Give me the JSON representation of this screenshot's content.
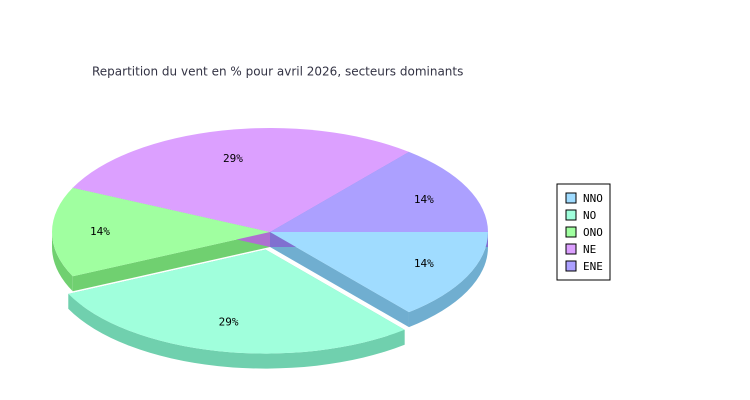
{
  "chart_data": {
    "type": "pie3d",
    "title": "Repartition du vent en % pour avril 2026, secteurs dominants",
    "categories": [
      "NNO",
      "NO",
      "ONO",
      "NE",
      "ENE"
    ],
    "values": [
      14,
      29,
      14,
      29,
      14
    ],
    "value_labels": [
      "14%",
      "29%",
      "14%",
      "29%",
      "14%"
    ],
    "colors": [
      "#a0dcff",
      "#a0ffdc",
      "#a0ffa0",
      "#dca0ff",
      "#aca0ff"
    ],
    "side_colors": [
      "#70aed0",
      "#70d0ae",
      "#70d070",
      "#ae70d0",
      "#8070d0"
    ],
    "legend": "right"
  }
}
